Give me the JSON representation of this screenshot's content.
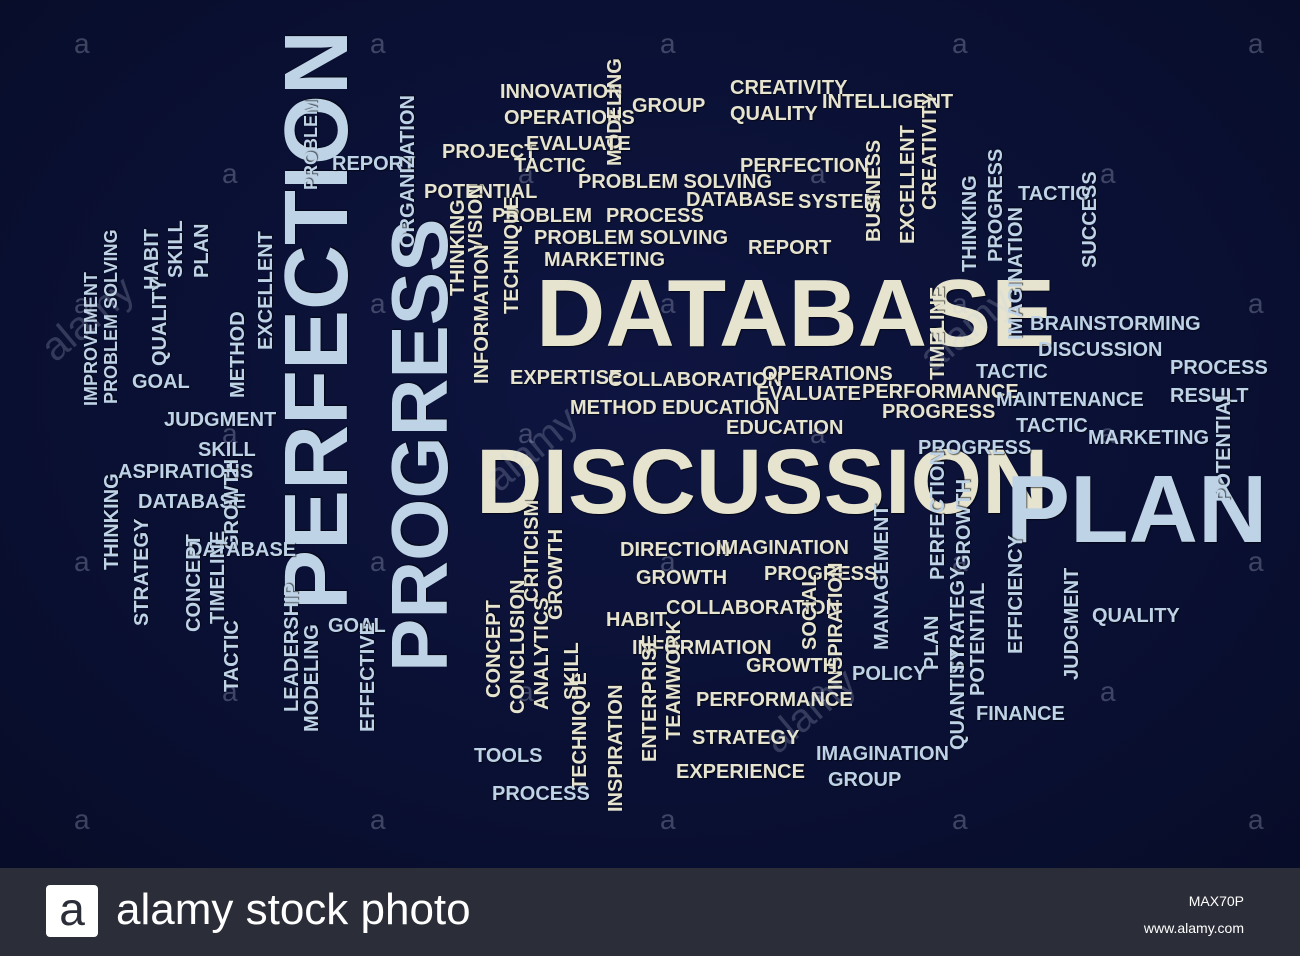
{
  "words": [
    {
      "t": "DATABASE"
    },
    {
      "t": "DISCUSSION"
    },
    {
      "t": "PLAN"
    },
    {
      "t": "PERFECTION"
    },
    {
      "t": "PROGRESS"
    },
    {
      "t": "INNOVATION"
    },
    {
      "t": "OPERATIONS"
    },
    {
      "t": "MODELING"
    },
    {
      "t": "GROUP"
    },
    {
      "t": "CREATIVITY"
    },
    {
      "t": "QUALITY"
    },
    {
      "t": "INTELLIGENT"
    },
    {
      "t": "PROJECT"
    },
    {
      "t": "EVALUATE"
    },
    {
      "t": "TACTIC"
    },
    {
      "t": "REPORT"
    },
    {
      "t": "PROBLEM"
    },
    {
      "t": "ORGANIZATION"
    },
    {
      "t": "POTENTIAL"
    },
    {
      "t": "PROBLEM SOLVING"
    },
    {
      "t": "PERFECTION"
    },
    {
      "t": "DATABASE"
    },
    {
      "t": "SYSTEM"
    },
    {
      "t": "BUSINESS"
    },
    {
      "t": "EXCELLENT"
    },
    {
      "t": "CREATIVITY"
    },
    {
      "t": "PROBLEM"
    },
    {
      "t": "PROCESS"
    },
    {
      "t": "PROBLEM SOLVING"
    },
    {
      "t": "VISION"
    },
    {
      "t": "THINKING"
    },
    {
      "t": "TECHNIQUE"
    },
    {
      "t": "MARKETING"
    },
    {
      "t": "REPORT"
    },
    {
      "t": "TACTIC"
    },
    {
      "t": "SUCCESS"
    },
    {
      "t": "THINKING"
    },
    {
      "t": "PROGRESS"
    },
    {
      "t": "IMAGINATION"
    },
    {
      "t": "SKILL"
    },
    {
      "t": "PLAN"
    },
    {
      "t": "HABIT"
    },
    {
      "t": "IMPROVEMENT"
    },
    {
      "t": "PROBLEM SOLVING"
    },
    {
      "t": "QUALITY"
    },
    {
      "t": "GOAL"
    },
    {
      "t": "EXCELLENT"
    },
    {
      "t": "METHOD"
    },
    {
      "t": "INFORMATION"
    },
    {
      "t": "TIMELINE"
    },
    {
      "t": "BRAINSTORMING"
    },
    {
      "t": "DISCUSSION"
    },
    {
      "t": "EXPERTISE"
    },
    {
      "t": "COLLABORATION"
    },
    {
      "t": "OPERATIONS"
    },
    {
      "t": "EVALUATE"
    },
    {
      "t": "PERFORMANCE"
    },
    {
      "t": "TACTIC"
    },
    {
      "t": "PROCESS"
    },
    {
      "t": "RESULT"
    },
    {
      "t": "METHOD"
    },
    {
      "t": "EDUCATION"
    },
    {
      "t": "PROGRESS"
    },
    {
      "t": "MAINTENANCE"
    },
    {
      "t": "EDUCATION"
    },
    {
      "t": "TACTIC"
    },
    {
      "t": "MARKETING"
    },
    {
      "t": "JUDGMENT"
    },
    {
      "t": "SKILL"
    },
    {
      "t": "PROGRESS"
    },
    {
      "t": "POTENTIAL"
    },
    {
      "t": "ASPIRATIONS"
    },
    {
      "t": "DATABASE"
    },
    {
      "t": "GROWTH"
    },
    {
      "t": "THINKING"
    },
    {
      "t": "DATABASE"
    },
    {
      "t": "STRATEGY"
    },
    {
      "t": "CONCEPT"
    },
    {
      "t": "TIMELINE"
    },
    {
      "t": "CRITICISM"
    },
    {
      "t": "GROWTH"
    },
    {
      "t": "DIRECTION"
    },
    {
      "t": "IMAGINATION"
    },
    {
      "t": "GROWTH"
    },
    {
      "t": "PROGRESS"
    },
    {
      "t": "PERFECTION"
    },
    {
      "t": "GROWTH"
    },
    {
      "t": "MANAGEMENT"
    },
    {
      "t": "STRATEGY"
    },
    {
      "t": "EFFICIENCY"
    },
    {
      "t": "COLLABORATION"
    },
    {
      "t": "HABIT"
    },
    {
      "t": "SOCIAL"
    },
    {
      "t": "INSPIRATION"
    },
    {
      "t": "QUALITY"
    },
    {
      "t": "TACTIC"
    },
    {
      "t": "LEADERSHIP"
    },
    {
      "t": "GOAL"
    },
    {
      "t": "MODELING"
    },
    {
      "t": "EFFECTIVE"
    },
    {
      "t": "CONCEPT"
    },
    {
      "t": "CONCLUSION"
    },
    {
      "t": "ANALYTICS"
    },
    {
      "t": "SKILL"
    },
    {
      "t": "INFORMATION"
    },
    {
      "t": "ENTERPRISE"
    },
    {
      "t": "TEAMWORK"
    },
    {
      "t": "GROWTH"
    },
    {
      "t": "POLICY"
    },
    {
      "t": "PLAN"
    },
    {
      "t": "QUANTITY"
    },
    {
      "t": "POTENTIAL"
    },
    {
      "t": "JUDGMENT"
    },
    {
      "t": "PERFORMANCE"
    },
    {
      "t": "FINANCE"
    },
    {
      "t": "TOOLS"
    },
    {
      "t": "TECHNIQUE"
    },
    {
      "t": "STRATEGY"
    },
    {
      "t": "IMAGINATION"
    },
    {
      "t": "INSPIRATION"
    },
    {
      "t": "EXPERIENCE"
    },
    {
      "t": "GROUP"
    },
    {
      "t": "PROCESS"
    }
  ],
  "watermark": {
    "glyph": "a",
    "word": "alamy"
  },
  "footer": {
    "logo_glyph": "a",
    "brand": "alamy stock photo",
    "image_id": "MAX70P",
    "url": "www.alamy.com"
  }
}
